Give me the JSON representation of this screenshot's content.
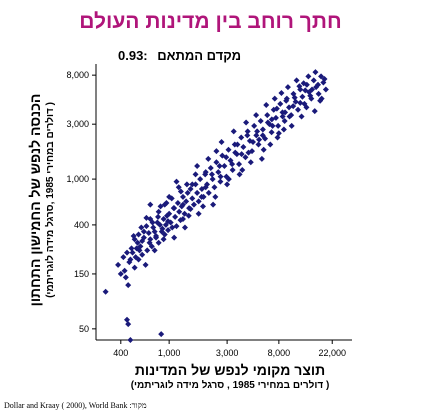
{
  "title": "חתך רוחב בין מדינות העולם",
  "correlation": {
    "label": "מקדם המתאם",
    "value": "0.93:"
  },
  "source": "Dollar and Kraay ( 2000), World Bank :מקור",
  "colors": {
    "title": "#b0157a",
    "marker": "#1a1a7a"
  },
  "chart_data": {
    "type": "scatter",
    "xscale": "log",
    "yscale": "log",
    "xlim": [
      250,
      32000
    ],
    "ylim": [
      40,
      10000
    ],
    "xticks": [
      400,
      1000,
      3000,
      8000,
      22000
    ],
    "xtick_labels": [
      "400",
      "1,000",
      "3,000",
      "8,000",
      "22,000"
    ],
    "yticks": [
      50,
      150,
      400,
      1000,
      3000,
      8000
    ],
    "ytick_labels": [
      "50",
      "150",
      "400",
      "1,000",
      "3,000",
      "8,000"
    ],
    "xlabel": "תוצר מקומי לנפש של המדינות",
    "xlabel_sub": "( דולרים במחירי 1985 , סרגל מידה לוגריתמי)",
    "ylabel": "הכנסה לנפש של החמישון התחתון",
    "ylabel_sub": "( דולרים במחירי 1985 ,סרגל מידה לוגריתמי)",
    "grid": false,
    "points": [
      [
        300,
        105
      ],
      [
        380,
        180
      ],
      [
        400,
        150
      ],
      [
        420,
        210
      ],
      [
        450,
        60
      ],
      [
        460,
        55
      ],
      [
        480,
        40
      ],
      [
        500,
        230
      ],
      [
        520,
        170
      ],
      [
        540,
        250
      ],
      [
        560,
        200
      ],
      [
        580,
        260
      ],
      [
        600,
        220
      ],
      [
        620,
        310
      ],
      [
        640,
        180
      ],
      [
        660,
        240
      ],
      [
        680,
        340
      ],
      [
        700,
        300
      ],
      [
        720,
        260
      ],
      [
        740,
        380
      ],
      [
        760,
        350
      ],
      [
        780,
        320
      ],
      [
        800,
        420
      ],
      [
        820,
        280
      ],
      [
        840,
        400
      ],
      [
        860,
        45
      ],
      [
        880,
        370
      ],
      [
        900,
        450
      ],
      [
        920,
        330
      ],
      [
        940,
        400
      ],
      [
        960,
        480
      ],
      [
        980,
        360
      ],
      [
        1000,
        500
      ],
      [
        1030,
        420
      ],
      [
        1060,
        380
      ],
      [
        1090,
        560
      ],
      [
        1120,
        470
      ],
      [
        1150,
        390
      ],
      [
        1180,
        620
      ],
      [
        1210,
        520
      ],
      [
        1240,
        440
      ],
      [
        1270,
        580
      ],
      [
        1300,
        700
      ],
      [
        1340,
        500
      ],
      [
        1380,
        640
      ],
      [
        1420,
        760
      ],
      [
        1460,
        560
      ],
      [
        1500,
        820
      ],
      [
        1550,
        680
      ],
      [
        1600,
        600
      ],
      [
        1650,
        900
      ],
      [
        1700,
        760
      ],
      [
        1750,
        640
      ],
      [
        1800,
        1000
      ],
      [
        1860,
        820
      ],
      [
        1920,
        700
      ],
      [
        1980,
        1100
      ],
      [
        2050,
        900
      ],
      [
        2120,
        760
      ],
      [
        2200,
        1250
      ],
      [
        2280,
        1000
      ],
      [
        2360,
        850
      ],
      [
        2450,
        1400
      ],
      [
        2540,
        1150
      ],
      [
        2640,
        950
      ],
      [
        2740,
        1600
      ],
      [
        2850,
        1300
      ],
      [
        2960,
        1050
      ],
      [
        3080,
        1800
      ],
      [
        3200,
        1450
      ],
      [
        3330,
        1200
      ],
      [
        3470,
        2000
      ],
      [
        3610,
        1650
      ],
      [
        3760,
        1350
      ],
      [
        3920,
        2300
      ],
      [
        4080,
        1900
      ],
      [
        4250,
        1550
      ],
      [
        4430,
        2600
      ],
      [
        4620,
        2150
      ],
      [
        4810,
        1750
      ],
      [
        5010,
        2900
      ],
      [
        5220,
        2400
      ],
      [
        5440,
        2000
      ],
      [
        5670,
        3200
      ],
      [
        5910,
        2700
      ],
      [
        6160,
        2250
      ],
      [
        6420,
        3600
      ],
      [
        6690,
        3000
      ],
      [
        6970,
        2550
      ],
      [
        7260,
        4000
      ],
      [
        7570,
        3400
      ],
      [
        7890,
        2900
      ],
      [
        8220,
        4500
      ],
      [
        8570,
        3800
      ],
      [
        8930,
        3200
      ],
      [
        9310,
        5000
      ],
      [
        9700,
        4200
      ],
      [
        10100,
        3600
      ],
      [
        10550,
        5500
      ],
      [
        11000,
        4700
      ],
      [
        11500,
        4000
      ],
      [
        12000,
        6000
      ],
      [
        12500,
        5200
      ],
      [
        13000,
        4500
      ],
      [
        13600,
        6600
      ],
      [
        14200,
        5700
      ],
      [
        14800,
        5000
      ],
      [
        15500,
        7200
      ],
      [
        16200,
        6300
      ],
      [
        17000,
        5500
      ],
      [
        17800,
        7800
      ],
      [
        18600,
        6900
      ],
      [
        19500,
        6000
      ],
      [
        16000,
        8500
      ],
      [
        14000,
        7800
      ],
      [
        12800,
        6800
      ],
      [
        11200,
        7200
      ],
      [
        15000,
        6000
      ],
      [
        18000,
        5000
      ],
      [
        13500,
        4200
      ],
      [
        9000,
        3800
      ],
      [
        10500,
        4300
      ],
      [
        8000,
        2500
      ],
      [
        7000,
        3300
      ],
      [
        6000,
        1800
      ],
      [
        5500,
        2200
      ],
      [
        4500,
        1700
      ],
      [
        4000,
        1200
      ],
      [
        3500,
        1700
      ],
      [
        3000,
        900
      ],
      [
        2600,
        1300
      ],
      [
        2300,
        600
      ],
      [
        2000,
        850
      ],
      [
        1750,
        500
      ],
      [
        1550,
        900
      ],
      [
        1350,
        380
      ],
      [
        1250,
        780
      ],
      [
        1100,
        310
      ],
      [
        1000,
        700
      ],
      [
        900,
        300
      ],
      [
        820,
        520
      ],
      [
        760,
        240
      ],
      [
        700,
        450
      ],
      [
        650,
        390
      ],
      [
        600,
        290
      ],
      [
        560,
        330
      ],
      [
        520,
        300
      ],
      [
        480,
        200
      ],
      [
        460,
        120
      ],
      [
        440,
        140
      ],
      [
        700,
        600
      ],
      [
        850,
        580
      ],
      [
        950,
        620
      ],
      [
        1150,
        950
      ],
      [
        1300,
        450
      ],
      [
        1450,
        480
      ],
      [
        1700,
        1300
      ],
      [
        1900,
        580
      ],
      [
        2100,
        1500
      ],
      [
        2400,
        700
      ],
      [
        2700,
        2100
      ],
      [
        3100,
        1000
      ],
      [
        3400,
        2600
      ],
      [
        3800,
        1100
      ],
      [
        4300,
        3100
      ],
      [
        4700,
        1400
      ],
      [
        5200,
        3600
      ],
      [
        5800,
        1500
      ],
      [
        6300,
        4400
      ],
      [
        6800,
        2000
      ],
      [
        7400,
        5000
      ],
      [
        7800,
        2300
      ],
      [
        8400,
        5600
      ],
      [
        8800,
        2700
      ],
      [
        9500,
        6300
      ],
      [
        10200,
        2900
      ],
      [
        11800,
        6400
      ],
      [
        12300,
        3500
      ],
      [
        14500,
        5300
      ],
      [
        16800,
        6600
      ],
      [
        19000,
        7400
      ],
      [
        17500,
        4800
      ],
      [
        15800,
        3900
      ],
      [
        13200,
        5900
      ],
      [
        12000,
        4600
      ],
      [
        10800,
        5100
      ],
      [
        9800,
        3500
      ],
      [
        9200,
        4800
      ],
      [
        8600,
        3500
      ],
      [
        7700,
        4100
      ],
      [
        7100,
        2900
      ],
      [
        6500,
        3100
      ],
      [
        5900,
        2400
      ],
      [
        5300,
        2600
      ],
      [
        4900,
        2100
      ],
      [
        4400,
        2400
      ],
      [
        3950,
        1650
      ],
      [
        3650,
        2000
      ],
      [
        3300,
        1350
      ],
      [
        2950,
        1550
      ],
      [
        2650,
        1050
      ],
      [
        2450,
        1750
      ],
      [
        2250,
        1100
      ],
      [
        2000,
        1150
      ],
      [
        1850,
        700
      ],
      [
        1650,
        1100
      ],
      [
        1500,
        550
      ],
      [
        1400,
        900
      ],
      [
        1300,
        600
      ],
      [
        1200,
        850
      ],
      [
        1100,
        560
      ],
      [
        1050,
        680
      ],
      [
        980,
        430
      ],
      [
        920,
        600
      ],
      [
        870,
        350
      ],
      [
        810,
        470
      ],
      [
        780,
        310
      ],
      [
        730,
        420
      ],
      [
        690,
        280
      ],
      [
        650,
        460
      ],
      [
        620,
        350
      ],
      [
        590,
        380
      ],
      [
        570,
        240
      ],
      [
        550,
        280
      ],
      [
        530,
        210
      ],
      [
        510,
        320
      ],
      [
        490,
        250
      ],
      [
        470,
        190
      ],
      [
        450,
        230
      ],
      [
        430,
        160
      ]
    ]
  }
}
